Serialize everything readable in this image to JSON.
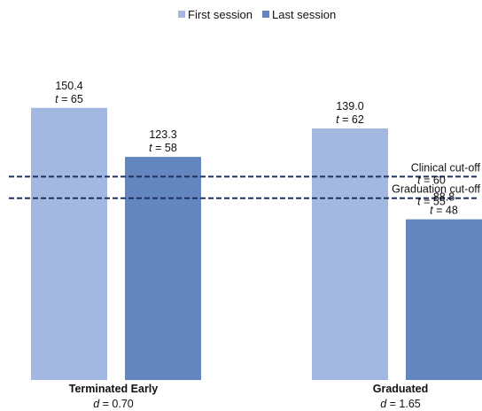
{
  "chart_data": {
    "type": "bar",
    "categories": [
      "Terminated Early",
      "Graduated"
    ],
    "category_effects": [
      "0.70",
      "1.65"
    ],
    "effect_label": "d",
    "series": [
      {
        "name": "First session",
        "color": "#a2b8e0",
        "values": [
          150.4,
          139.0
        ],
        "value_labels": [
          "150.4",
          "139.0"
        ],
        "t_scores": [
          65,
          62
        ]
      },
      {
        "name": "Last session",
        "color": "#6286bd",
        "values": [
          123.3,
          88.8
        ],
        "value_labels": [
          "123.3",
          "88.8"
        ],
        "t_scores": [
          58,
          48
        ]
      }
    ],
    "reference_lines": [
      {
        "label": "Clinical cut-off",
        "t": 60,
        "value": 112.4
      },
      {
        "label": "Graduation cut-off",
        "t": 55,
        "value": 100.5
      }
    ],
    "t_label": "t",
    "ylim": [
      0,
      210
    ],
    "line_color": "#1f3160",
    "legend_position": "top-center",
    "grid": false
  }
}
